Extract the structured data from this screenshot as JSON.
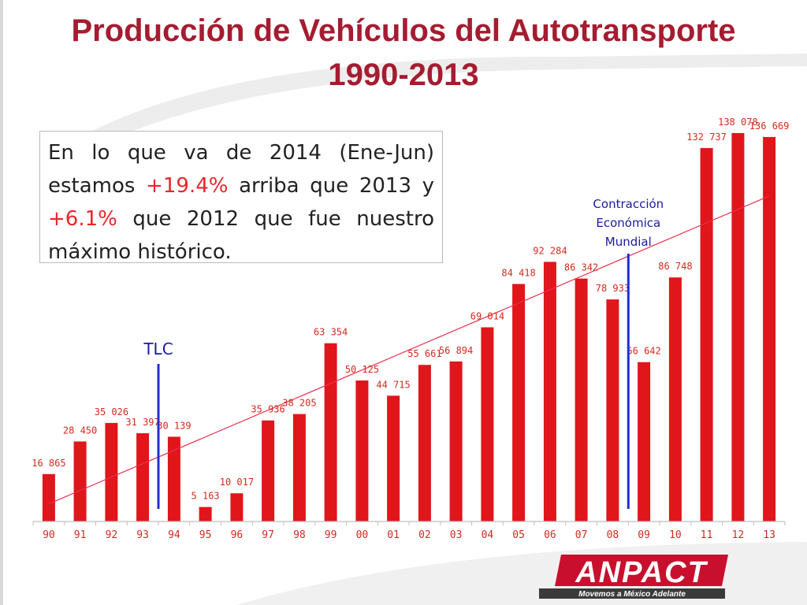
{
  "title": {
    "line1": "Producción de Vehículos del Autotransporte",
    "line2": "1990-2013"
  },
  "note": {
    "part1": "En lo que va de 2014 (Ene-Jun) estamos ",
    "pct1": "+19.4%",
    "part2": " arriba que 2013 y ",
    "pct2": "+6.1%",
    "part3": " que 2012 que fue nuestro máximo histórico."
  },
  "logo": {
    "brand": "ANPACT",
    "tagline": "Movemos a México Adelante"
  },
  "colors": {
    "title": "#a51c30",
    "bar": "#e0161b",
    "label": "#d42a1f",
    "trend": "#e8304a",
    "annotation": "#1a1aa0",
    "highlight": "#e8262b"
  },
  "chart_data": {
    "type": "bar",
    "title": "Producción de Vehículos del Autotransporte 1990-2013",
    "xlabel": "",
    "ylabel": "",
    "categories": [
      "90",
      "91",
      "92",
      "93",
      "94",
      "95",
      "96",
      "97",
      "98",
      "99",
      "00",
      "01",
      "02",
      "03",
      "04",
      "05",
      "06",
      "07",
      "08",
      "09",
      "10",
      "11",
      "12",
      "13"
    ],
    "values": [
      16865,
      28450,
      35026,
      31397,
      30139,
      5163,
      10017,
      35936,
      38205,
      63354,
      50125,
      44715,
      55661,
      56894,
      69014,
      84418,
      92284,
      86342,
      78933,
      56642,
      86748,
      132737,
      138078,
      136669
    ],
    "labels": [
      "16 865",
      "28 450",
      "35 026",
      "31 397",
      "30 139",
      "5 163",
      "10 017",
      "35 936",
      "38 205",
      "63 354",
      "50 125",
      "44 715",
      "55 661",
      "56 894",
      "69 014",
      "84 418",
      "92 284",
      "86 342",
      "78 933",
      "56 642",
      "86 748",
      "132 737",
      "138 078",
      "136 669"
    ],
    "ylim": [
      0,
      140000
    ],
    "grid": false,
    "legend": "none",
    "trendline": true,
    "annotations": [
      {
        "text_lines": [
          "TLC"
        ],
        "between": [
          "93",
          "94"
        ]
      },
      {
        "text_lines": [
          "Contracción",
          "Económica",
          "Mundial"
        ],
        "between": [
          "08",
          "09"
        ]
      }
    ]
  }
}
